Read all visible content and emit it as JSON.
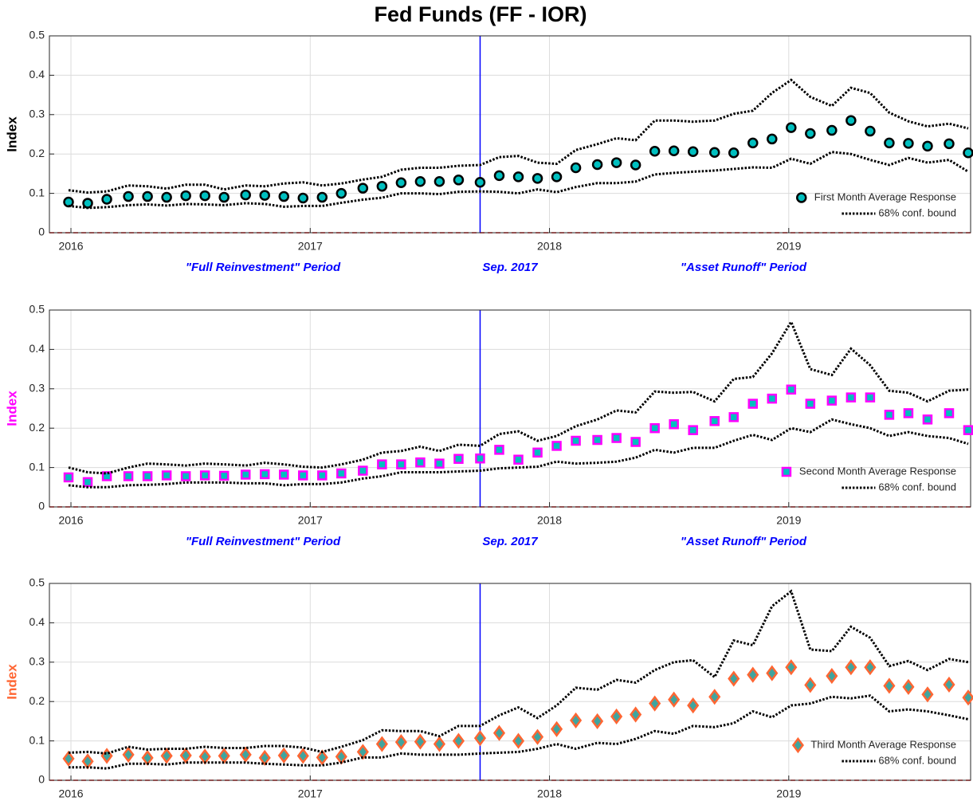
{
  "title": "Fed Funds (FF - IOR)",
  "chart_data": [
    {
      "type": "line",
      "ylabel": "Index",
      "ylabel_color": "#000000",
      "x": [
        2015.99,
        2016.07,
        2016.15,
        2016.24,
        2016.32,
        2016.4,
        2016.48,
        2016.56,
        2016.64,
        2016.73,
        2016.81,
        2016.89,
        2016.97,
        2017.05,
        2017.13,
        2017.22,
        2017.3,
        2017.38,
        2017.46,
        2017.54,
        2017.62,
        2017.71,
        2017.79,
        2017.87,
        2017.95,
        2018.03,
        2018.11,
        2018.2,
        2018.28,
        2018.36,
        2018.44,
        2018.52,
        2018.6,
        2018.69,
        2018.77,
        2018.85,
        2018.93,
        2019.01,
        2019.09,
        2019.18,
        2019.26,
        2019.34,
        2019.42,
        2019.5,
        2019.58,
        2019.67,
        2019.75
      ],
      "xlim": [
        2015.91,
        2019.76
      ],
      "xticks": [
        2016,
        2017,
        2018,
        2019
      ],
      "ylim": [
        0,
        0.5
      ],
      "yticks": [
        0,
        0.1,
        0.2,
        0.3,
        0.4,
        0.5
      ],
      "grid": true,
      "legend": "lower right",
      "vline": 2017.71,
      "vline_color": "#0000ff",
      "hline": 0,
      "hline_color": "#ff0000",
      "annotations": [
        "\"Full Reinvestment\" Period",
        "Sep. 2017",
        "\"Asset Runoff\" Period"
      ],
      "annotation_color": "#0000ff",
      "series": [
        {
          "name": "First Month Average Response",
          "marker": "circle",
          "color": "#000000",
          "fill": "#00bfbf",
          "values": [
            0.078,
            0.075,
            0.085,
            0.092,
            0.092,
            0.09,
            0.094,
            0.094,
            0.09,
            0.096,
            0.095,
            0.092,
            0.088,
            0.09,
            0.1,
            0.113,
            0.118,
            0.127,
            0.13,
            0.13,
            0.134,
            0.128,
            0.145,
            0.142,
            0.138,
            0.142,
            0.165,
            0.173,
            0.178,
            0.172,
            0.207,
            0.208,
            0.206,
            0.204,
            0.203,
            0.228,
            0.238,
            0.267,
            0.252,
            0.26,
            0.285,
            0.258,
            0.228,
            0.227,
            0.22,
            0.226,
            0.203
          ]
        },
        {
          "name": "68% conf. bound",
          "color": "#000000",
          "upper": [
            0.108,
            0.102,
            0.105,
            0.12,
            0.118,
            0.112,
            0.122,
            0.122,
            0.11,
            0.12,
            0.118,
            0.125,
            0.128,
            0.12,
            0.125,
            0.135,
            0.142,
            0.16,
            0.165,
            0.165,
            0.17,
            0.172,
            0.192,
            0.195,
            0.178,
            0.175,
            0.21,
            0.225,
            0.24,
            0.235,
            0.285,
            0.285,
            0.282,
            0.285,
            0.302,
            0.31,
            0.355,
            0.388,
            0.345,
            0.322,
            0.368,
            0.355,
            0.305,
            0.283,
            0.27,
            0.277,
            0.265
          ],
          "lower": [
            0.068,
            0.063,
            0.065,
            0.07,
            0.072,
            0.069,
            0.073,
            0.072,
            0.07,
            0.075,
            0.073,
            0.066,
            0.068,
            0.068,
            0.076,
            0.084,
            0.089,
            0.1,
            0.1,
            0.098,
            0.104,
            0.105,
            0.104,
            0.1,
            0.11,
            0.103,
            0.116,
            0.126,
            0.126,
            0.13,
            0.148,
            0.152,
            0.155,
            0.158,
            0.162,
            0.166,
            0.165,
            0.188,
            0.175,
            0.205,
            0.2,
            0.185,
            0.172,
            0.19,
            0.178,
            0.185,
            0.155
          ]
        }
      ]
    },
    {
      "type": "line",
      "ylabel": "Index",
      "ylabel_color": "#ff00ff",
      "x": [
        2015.99,
        2016.07,
        2016.15,
        2016.24,
        2016.32,
        2016.4,
        2016.48,
        2016.56,
        2016.64,
        2016.73,
        2016.81,
        2016.89,
        2016.97,
        2017.05,
        2017.13,
        2017.22,
        2017.3,
        2017.38,
        2017.46,
        2017.54,
        2017.62,
        2017.71,
        2017.79,
        2017.87,
        2017.95,
        2018.03,
        2018.11,
        2018.2,
        2018.28,
        2018.36,
        2018.44,
        2018.52,
        2018.6,
        2018.69,
        2018.77,
        2018.85,
        2018.93,
        2019.01,
        2019.09,
        2019.18,
        2019.26,
        2019.34,
        2019.42,
        2019.5,
        2019.58,
        2019.67,
        2019.75
      ],
      "xlim": [
        2015.91,
        2019.76
      ],
      "xticks": [
        2016,
        2017,
        2018,
        2019
      ],
      "ylim": [
        0,
        0.5
      ],
      "yticks": [
        0,
        0.1,
        0.2,
        0.3,
        0.4,
        0.5
      ],
      "grid": true,
      "legend": "lower right",
      "vline": 2017.71,
      "vline_color": "#0000ff",
      "hline": 0,
      "hline_color": "#ff0000",
      "annotations": [
        "\"Full Reinvestment\" Period",
        "Sep. 2017",
        "\"Asset Runoff\" Period"
      ],
      "annotation_color": "#0000ff",
      "series": [
        {
          "name": "Second Month Average Response",
          "marker": "square",
          "color": "#ff00ff",
          "fill": "#00bfbf",
          "values": [
            0.075,
            0.063,
            0.078,
            0.078,
            0.078,
            0.08,
            0.078,
            0.08,
            0.079,
            0.082,
            0.083,
            0.082,
            0.08,
            0.08,
            0.085,
            0.092,
            0.108,
            0.108,
            0.113,
            0.11,
            0.122,
            0.123,
            0.145,
            0.12,
            0.138,
            0.155,
            0.168,
            0.17,
            0.175,
            0.165,
            0.2,
            0.21,
            0.195,
            0.218,
            0.228,
            0.262,
            0.275,
            0.298,
            0.262,
            0.27,
            0.278,
            0.278,
            0.234,
            0.238,
            0.222,
            0.238,
            0.195
          ]
        },
        {
          "name": "68% conf. bound",
          "color": "#000000",
          "upper": [
            0.1,
            0.088,
            0.085,
            0.1,
            0.11,
            0.108,
            0.105,
            0.11,
            0.108,
            0.105,
            0.112,
            0.108,
            0.102,
            0.1,
            0.108,
            0.12,
            0.138,
            0.142,
            0.153,
            0.142,
            0.158,
            0.155,
            0.185,
            0.192,
            0.168,
            0.18,
            0.205,
            0.222,
            0.245,
            0.24,
            0.293,
            0.29,
            0.292,
            0.268,
            0.325,
            0.33,
            0.39,
            0.47,
            0.35,
            0.335,
            0.402,
            0.36,
            0.295,
            0.29,
            0.268,
            0.295,
            0.298
          ],
          "lower": [
            0.055,
            0.05,
            0.05,
            0.055,
            0.056,
            0.058,
            0.062,
            0.062,
            0.062,
            0.06,
            0.06,
            0.055,
            0.058,
            0.058,
            0.062,
            0.072,
            0.078,
            0.088,
            0.088,
            0.088,
            0.09,
            0.092,
            0.098,
            0.1,
            0.102,
            0.115,
            0.11,
            0.112,
            0.115,
            0.125,
            0.145,
            0.138,
            0.15,
            0.15,
            0.168,
            0.183,
            0.17,
            0.2,
            0.19,
            0.222,
            0.21,
            0.2,
            0.18,
            0.19,
            0.18,
            0.175,
            0.16
          ]
        }
      ]
    },
    {
      "type": "line",
      "ylabel": "Index",
      "ylabel_color": "#ff6633",
      "x": [
        2015.99,
        2016.07,
        2016.15,
        2016.24,
        2016.32,
        2016.4,
        2016.48,
        2016.56,
        2016.64,
        2016.73,
        2016.81,
        2016.89,
        2016.97,
        2017.05,
        2017.13,
        2017.22,
        2017.3,
        2017.38,
        2017.46,
        2017.54,
        2017.62,
        2017.71,
        2017.79,
        2017.87,
        2017.95,
        2018.03,
        2018.11,
        2018.2,
        2018.28,
        2018.36,
        2018.44,
        2018.52,
        2018.6,
        2018.69,
        2018.77,
        2018.85,
        2018.93,
        2019.01,
        2019.09,
        2019.18,
        2019.26,
        2019.34,
        2019.42,
        2019.5,
        2019.58,
        2019.67,
        2019.75
      ],
      "xlim": [
        2015.91,
        2019.76
      ],
      "xticks": [
        2016,
        2017,
        2018,
        2019
      ],
      "ylim": [
        0,
        0.5
      ],
      "yticks": [
        0,
        0.1,
        0.2,
        0.3,
        0.4,
        0.5
      ],
      "grid": true,
      "legend": "lower right",
      "vline": 2017.71,
      "vline_color": "#0000ff",
      "hline": 0,
      "hline_color": "#ff0000",
      "series": [
        {
          "name": "Third Month Average Response",
          "marker": "diamond",
          "color": "#ff6633",
          "fill": "#3fa59f",
          "values": [
            0.055,
            0.048,
            0.062,
            0.065,
            0.057,
            0.062,
            0.063,
            0.06,
            0.062,
            0.065,
            0.057,
            0.063,
            0.062,
            0.058,
            0.06,
            0.072,
            0.092,
            0.097,
            0.098,
            0.092,
            0.1,
            0.107,
            0.12,
            0.1,
            0.11,
            0.13,
            0.152,
            0.15,
            0.162,
            0.167,
            0.195,
            0.205,
            0.19,
            0.212,
            0.258,
            0.268,
            0.272,
            0.287,
            0.242,
            0.265,
            0.287,
            0.287,
            0.24,
            0.237,
            0.218,
            0.243,
            0.21
          ]
        },
        {
          "name": "68% conf. bound",
          "color": "#000000",
          "upper": [
            0.07,
            0.072,
            0.068,
            0.085,
            0.078,
            0.08,
            0.08,
            0.085,
            0.082,
            0.082,
            0.087,
            0.087,
            0.083,
            0.072,
            0.085,
            0.102,
            0.127,
            0.125,
            0.125,
            0.112,
            0.138,
            0.138,
            0.165,
            0.185,
            0.158,
            0.19,
            0.235,
            0.23,
            0.255,
            0.248,
            0.28,
            0.3,
            0.305,
            0.262,
            0.355,
            0.343,
            0.442,
            0.48,
            0.332,
            0.328,
            0.39,
            0.362,
            0.29,
            0.303,
            0.28,
            0.308,
            0.3
          ],
          "lower": [
            0.033,
            0.033,
            0.03,
            0.042,
            0.042,
            0.04,
            0.045,
            0.045,
            0.045,
            0.045,
            0.042,
            0.04,
            0.038,
            0.038,
            0.045,
            0.058,
            0.058,
            0.068,
            0.065,
            0.065,
            0.065,
            0.068,
            0.07,
            0.072,
            0.08,
            0.092,
            0.08,
            0.095,
            0.092,
            0.105,
            0.125,
            0.118,
            0.138,
            0.135,
            0.145,
            0.175,
            0.16,
            0.19,
            0.195,
            0.212,
            0.208,
            0.215,
            0.175,
            0.18,
            0.175,
            0.165,
            0.155
          ]
        }
      ]
    }
  ]
}
